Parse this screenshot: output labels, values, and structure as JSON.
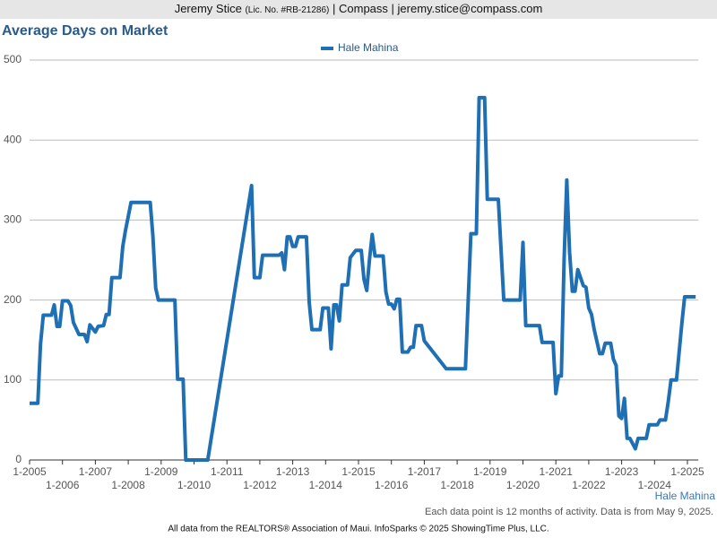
{
  "header": {
    "name": "Jeremy Stice",
    "license": "(Lic. No. #RB-21286)",
    "contact": "| Compass | jeremy.stice@compass.com"
  },
  "chart_data": {
    "type": "line",
    "title": "Average Days on Market",
    "x": [
      "1-2005",
      "4-2005",
      "5-2005",
      "6-2005",
      "9-2005",
      "10-2005",
      "11-2005",
      "12-2005",
      "1-2006",
      "3-2006",
      "4-2006",
      "5-2006",
      "7-2006",
      "9-2006",
      "10-2006",
      "11-2006",
      "1-2007",
      "2-2007",
      "4-2007",
      "5-2007",
      "6-2007",
      "7-2007",
      "10-2007",
      "11-2007",
      "12-2007",
      "2-2008",
      "9-2008",
      "10-2008",
      "11-2008",
      "12-2008",
      "6-2009",
      "7-2009",
      "9-2009",
      "10-2009",
      "6-2010",
      "10-2011",
      "11-2011",
      "1-2012",
      "2-2012",
      "8-2012",
      "9-2012",
      "10-2012",
      "11-2012",
      "12-2012",
      "1-2013",
      "2-2013",
      "3-2013",
      "6-2013",
      "7-2013",
      "8-2013",
      "11-2013",
      "12-2013",
      "2-2014",
      "3-2014",
      "4-2014",
      "5-2014",
      "6-2014",
      "7-2014",
      "9-2014",
      "10-2014",
      "12-2014",
      "2-2015",
      "3-2015",
      "4-2015",
      "5-2015",
      "6-2015",
      "7-2015",
      "10-2015",
      "11-2015",
      "12-2015",
      "1-2016",
      "2-2016",
      "3-2016",
      "4-2016",
      "5-2016",
      "7-2016",
      "8-2016",
      "9-2016",
      "10-2016",
      "12-2016",
      "1-2017",
      "9-2017",
      "4-2018",
      "6-2018",
      "8-2018",
      "9-2018",
      "11-2018",
      "12-2018",
      "4-2019",
      "6-2019",
      "12-2019",
      "1-2020",
      "2-2020",
      "7-2020",
      "8-2020",
      "12-2020",
      "1-2021",
      "2-2021",
      "3-2021",
      "4-2021",
      "5-2021",
      "6-2021",
      "7-2021",
      "8-2021",
      "9-2021",
      "11-2021",
      "12-2021",
      "1-2022",
      "2-2022",
      "3-2022",
      "5-2022",
      "6-2022",
      "7-2022",
      "9-2022",
      "10-2022",
      "11-2022",
      "12-2022",
      "1-2023",
      "2-2023",
      "3-2023",
      "4-2023",
      "6-2023",
      "7-2023",
      "10-2023",
      "11-2023",
      "2-2024",
      "3-2024",
      "5-2024",
      "6-2024",
      "7-2024",
      "9-2024",
      "11-2024",
      "12-2024",
      "4-2025"
    ],
    "series": [
      {
        "name": "Hale Mahina",
        "color": "#1f6fb5",
        "values": [
          71,
          71,
          145,
          181,
          181,
          194,
          167,
          167,
          199,
          199,
          193,
          172,
          157,
          157,
          148,
          169,
          160,
          167,
          168,
          182,
          182,
          228,
          228,
          267,
          287,
          322,
          322,
          280,
          215,
          200,
          200,
          101,
          101,
          0,
          0,
          343,
          228,
          228,
          256,
          256,
          259,
          238,
          279,
          279,
          267,
          267,
          279,
          279,
          197,
          163,
          163,
          190,
          190,
          139,
          194,
          194,
          174,
          219,
          219,
          253,
          262,
          262,
          226,
          212,
          250,
          282,
          255,
          255,
          210,
          195,
          195,
          189,
          201,
          201,
          135,
          135,
          141,
          141,
          168,
          168,
          149,
          114,
          114,
          283,
          283,
          453,
          453,
          326,
          326,
          200,
          200,
          272,
          168,
          168,
          147,
          147,
          83,
          105,
          105,
          250,
          350,
          260,
          211,
          211,
          238,
          218,
          216,
          190,
          182,
          163,
          133,
          133,
          146,
          146,
          126,
          118,
          55,
          52,
          77,
          27,
          27,
          14,
          27,
          27,
          44,
          44,
          50,
          50,
          73,
          100,
          100,
          172,
          204,
          204
        ]
      }
    ],
    "xlim": [
      "1-2005",
      "5-2025"
    ],
    "xticks": [
      "1-2005",
      "1-2006",
      "1-2007",
      "1-2008",
      "1-2009",
      "1-2010",
      "1-2011",
      "1-2012",
      "1-2013",
      "1-2014",
      "1-2015",
      "1-2016",
      "1-2017",
      "1-2018",
      "1-2019",
      "1-2020",
      "1-2021",
      "1-2022",
      "1-2023",
      "1-2024",
      "1-2025"
    ],
    "ylim": [
      0,
      500
    ],
    "yticks": [
      0,
      100,
      200,
      300,
      400,
      500
    ],
    "grid": true,
    "note": "Each data point is 12 months of activity. Data is from May 9, 2025.",
    "source": "All data from the REALTORS® Association of Maui. InfoSparks © 2025 ShowingTime Plus, LLC."
  }
}
